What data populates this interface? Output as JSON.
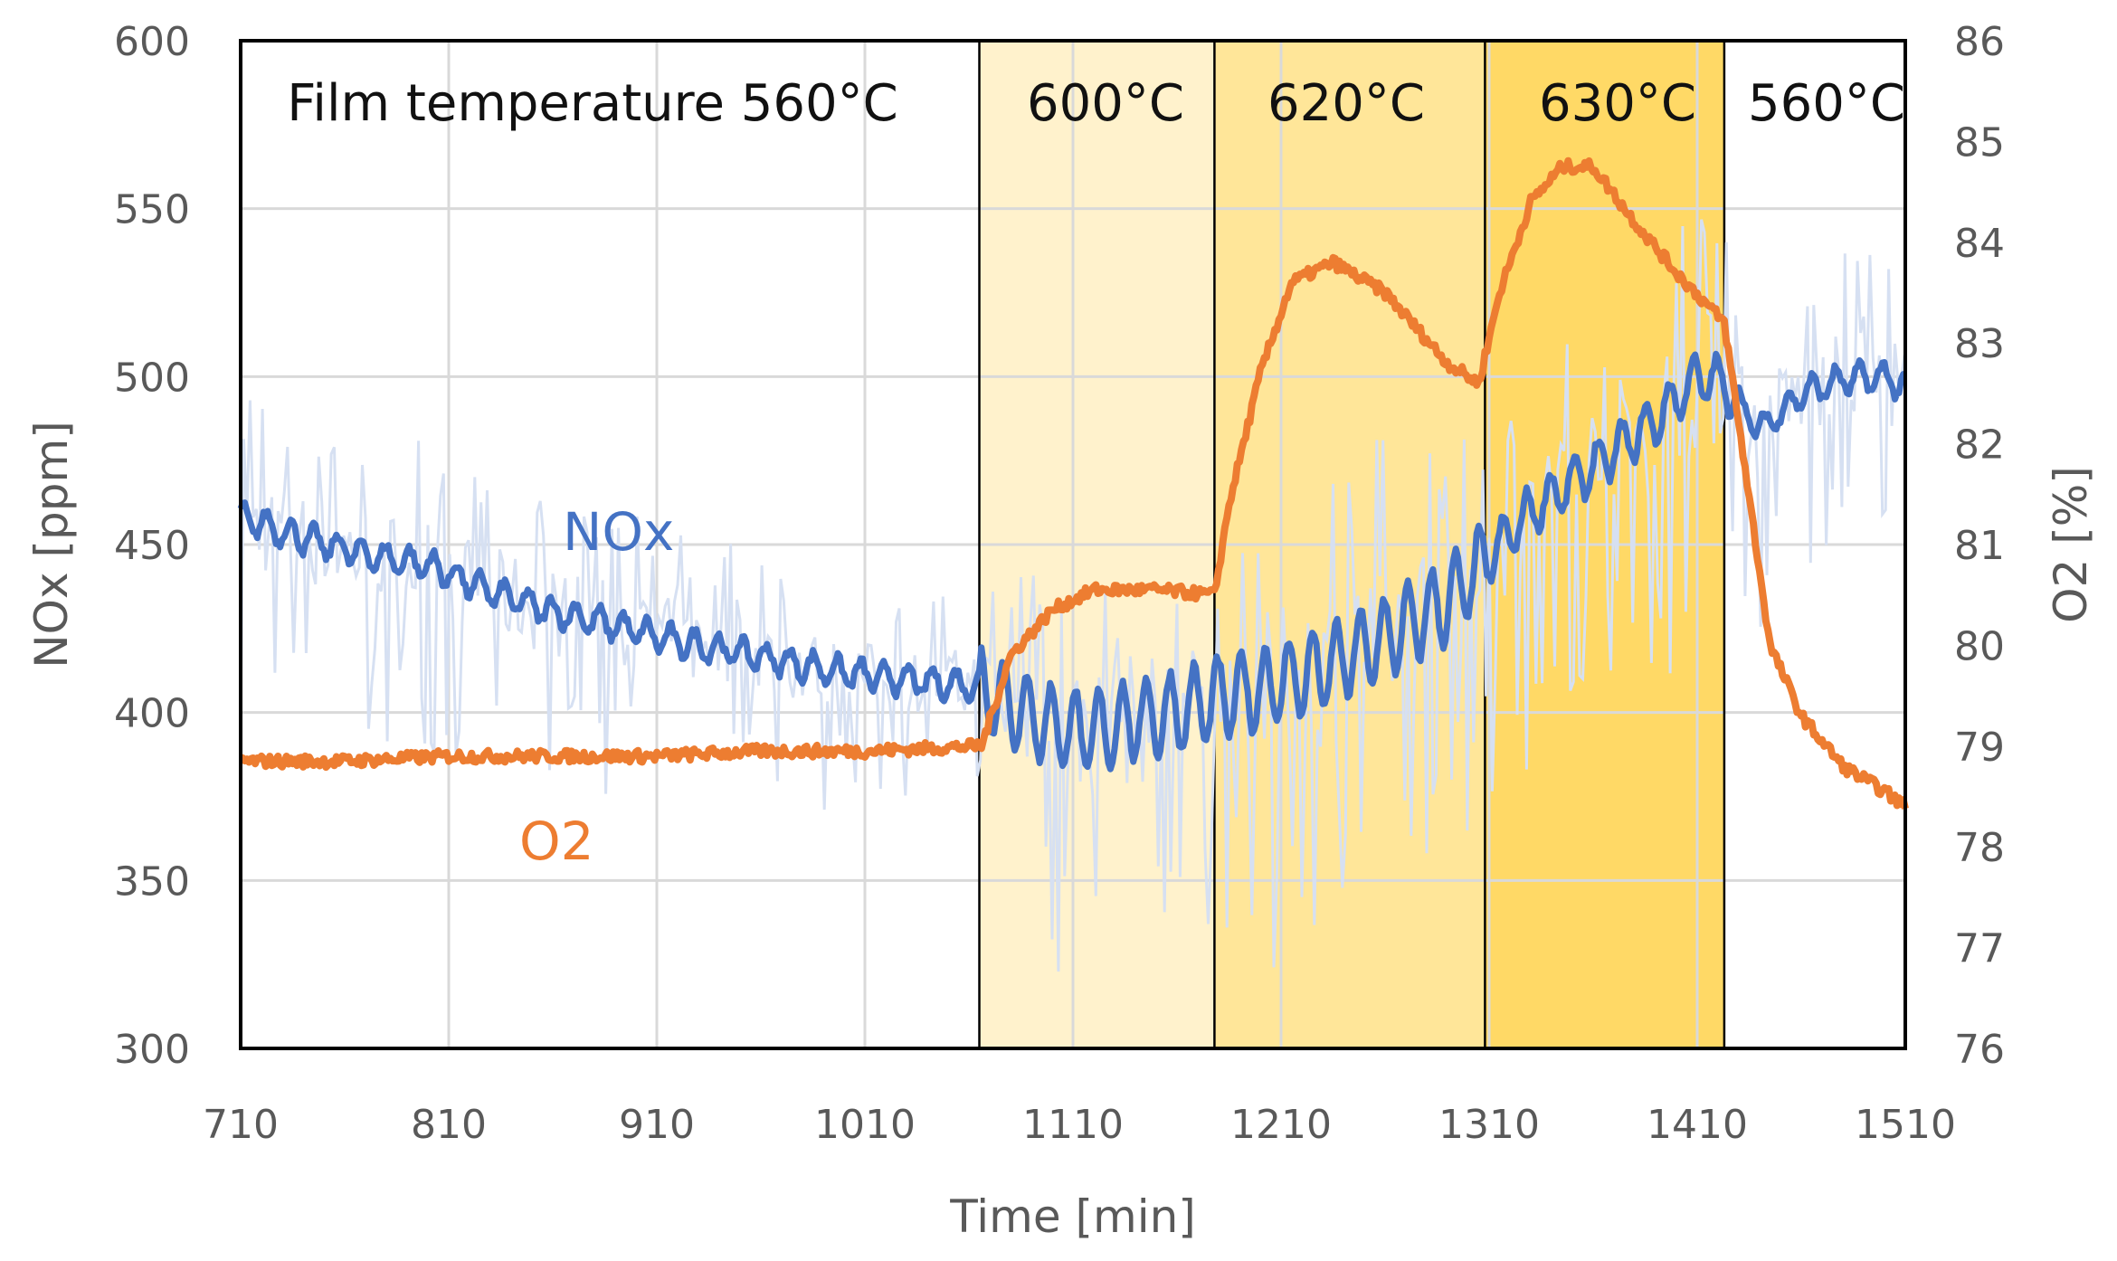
{
  "chart_data": {
    "type": "line",
    "xlabel": "Time [min]",
    "ylabel": "NOx [ppm]",
    "y2label": "O2 [%]",
    "xlim": [
      710,
      1510
    ],
    "ylim": [
      300,
      600
    ],
    "y2lim": [
      76,
      86
    ],
    "x_ticks": [
      "710",
      "810",
      "910",
      "1010",
      "1110",
      "1210",
      "1310",
      "1410",
      "1510"
    ],
    "y_ticks": [
      "300",
      "350",
      "400",
      "450",
      "500",
      "550",
      "600"
    ],
    "y2_ticks": [
      "76",
      "77",
      "78",
      "79",
      "80",
      "81",
      "82",
      "83",
      "84",
      "85",
      "86"
    ],
    "grid": true,
    "colors": {
      "nox": "#4472c4",
      "nox_raw": "#d6e0f2",
      "o2": "#ed7d31",
      "band_600": "#fff2cc",
      "band_620": "#ffe699",
      "band_630": "#ffd966",
      "grid": "#d9d9d9",
      "axis_text": "#595959"
    },
    "temperature_bands": [
      {
        "label": "Film temperature 560°C",
        "from": 710,
        "to": 1065,
        "fill": "none"
      },
      {
        "label": "600°C",
        "from": 1065,
        "to": 1178,
        "fill": "band_600"
      },
      {
        "label": "620°C",
        "from": 1178,
        "to": 1308,
        "fill": "band_620"
      },
      {
        "label": "630°C",
        "from": 1308,
        "to": 1423,
        "fill": "band_630"
      },
      {
        "label": "560°C",
        "from": 1423,
        "to": 1510,
        "fill": "none"
      }
    ],
    "series": [
      {
        "name": "NOx",
        "label": "NOx",
        "axis": "left",
        "color": "nox",
        "x": [
          710,
          740,
          770,
          800,
          830,
          860,
          890,
          920,
          950,
          980,
          1010,
          1040,
          1065,
          1080,
          1100,
          1120,
          1140,
          1160,
          1178,
          1200,
          1230,
          1260,
          1290,
          1308,
          1330,
          1360,
          1390,
          1410,
          1423,
          1440,
          1460,
          1480,
          1500,
          1510
        ],
        "values": [
          458,
          452,
          447,
          444,
          436,
          430,
          426,
          421,
          418,
          414,
          411,
          409,
          408,
          402,
          396,
          394,
          398,
          400,
          404,
          407,
          413,
          422,
          433,
          445,
          460,
          473,
          487,
          500,
          498,
          484,
          495,
          499,
          500,
          497
        ]
      },
      {
        "name": "NOx raw",
        "axis": "left",
        "color": "nox_raw",
        "x": [
          710,
          740,
          770,
          800,
          830,
          860,
          890,
          920,
          950,
          980,
          1010,
          1040,
          1065,
          1080,
          1100,
          1120,
          1140,
          1160,
          1178,
          1200,
          1230,
          1260,
          1290,
          1308,
          1330,
          1360,
          1390,
          1410,
          1423,
          1440,
          1460,
          1480,
          1500,
          1510
        ],
        "values": [
          458,
          452,
          447,
          444,
          436,
          430,
          426,
          421,
          418,
          414,
          411,
          409,
          408,
          402,
          396,
          394,
          398,
          400,
          404,
          407,
          413,
          422,
          433,
          445,
          460,
          473,
          487,
          500,
          498,
          484,
          495,
          499,
          500,
          497
        ],
        "noise_amplitude": [
          38,
          36,
          36,
          35,
          34,
          34,
          33,
          31,
          30,
          28,
          25,
          23,
          30,
          45,
          50,
          50,
          50,
          48,
          45,
          55,
          60,
          55,
          50,
          45,
          50,
          52,
          55,
          55,
          50,
          40,
          35,
          35,
          35,
          35
        ]
      },
      {
        "name": "O2",
        "label": "O2",
        "axis": "right",
        "color": "o2",
        "x": [
          710,
          760,
          810,
          860,
          910,
          960,
          1010,
          1064,
          1066,
          1080,
          1100,
          1120,
          1150,
          1178,
          1185,
          1200,
          1215,
          1235,
          1260,
          1290,
          1305,
          1315,
          1330,
          1345,
          1360,
          1380,
          1400,
          1423,
          1430,
          1445,
          1460,
          1480,
          1500,
          1510
        ],
        "values": [
          78.85,
          78.85,
          78.9,
          78.9,
          78.9,
          78.95,
          78.95,
          79.0,
          79.0,
          79.9,
          80.35,
          80.55,
          80.55,
          80.5,
          81.4,
          82.7,
          83.6,
          83.8,
          83.5,
          82.8,
          82.6,
          83.5,
          84.4,
          84.75,
          84.75,
          84.2,
          83.7,
          83.2,
          82.2,
          80.0,
          79.3,
          78.8,
          78.55,
          78.4
        ]
      }
    ]
  }
}
